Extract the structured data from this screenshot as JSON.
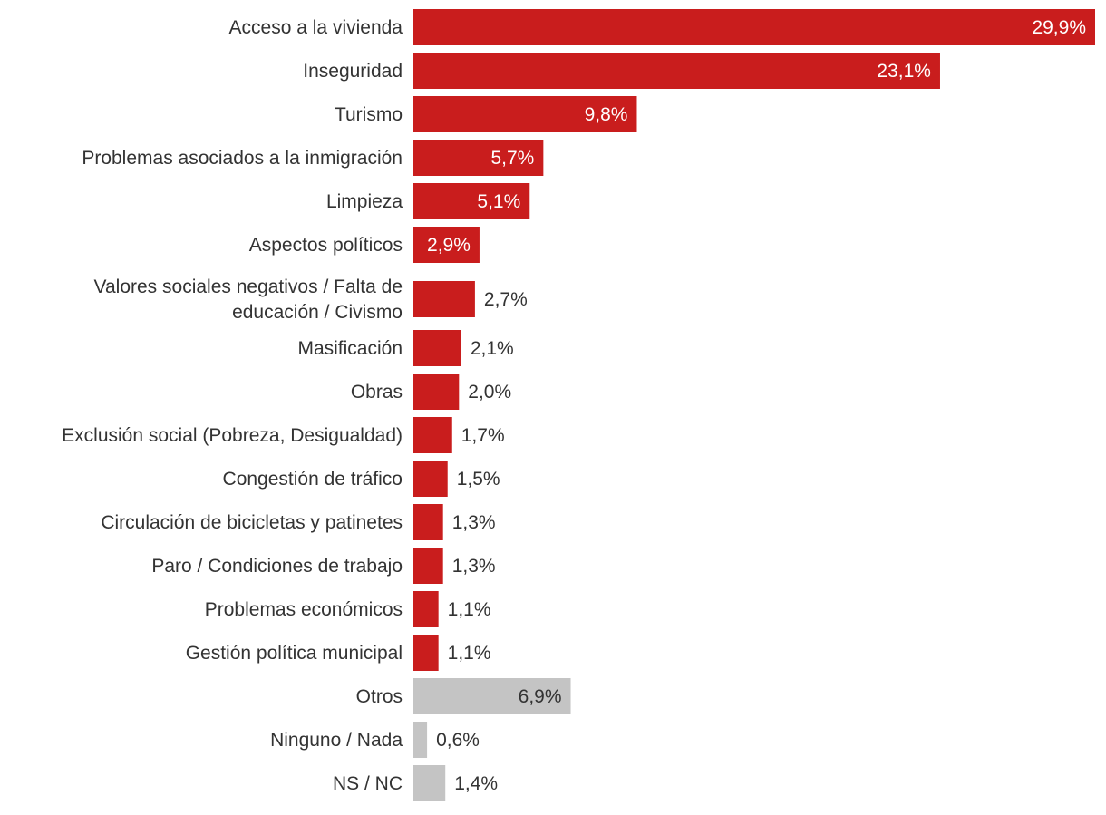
{
  "chart_data": {
    "type": "bar",
    "orientation": "horizontal",
    "title": "",
    "xlabel": "",
    "ylabel": "",
    "xlim": [
      0,
      29.9
    ],
    "grid": false,
    "legend": "none",
    "colors": {
      "main": "#c91d1d",
      "other": "#c4c4c4",
      "label_inside": "#ffffff",
      "label_outside": "#333333",
      "category_text": "#333333"
    },
    "bars": [
      {
        "category": "Acceso a la vivienda",
        "value": 29.9,
        "label": "29,9%",
        "group": "main"
      },
      {
        "category": "Inseguridad",
        "value": 23.1,
        "label": "23,1%",
        "group": "main"
      },
      {
        "category": "Turismo",
        "value": 9.8,
        "label": "9,8%",
        "group": "main"
      },
      {
        "category": "Problemas asociados a la inmigración",
        "value": 5.7,
        "label": "5,7%",
        "group": "main"
      },
      {
        "category": "Limpieza",
        "value": 5.1,
        "label": "5,1%",
        "group": "main"
      },
      {
        "category": "Aspectos políticos",
        "value": 2.9,
        "label": "2,9%",
        "group": "main"
      },
      {
        "category": "Valores sociales negativos / Falta de educación / Civismo",
        "category_lines": [
          "Valores sociales negativos / Falta de",
          "educación / Civismo"
        ],
        "value": 2.7,
        "label": "2,7%",
        "group": "main"
      },
      {
        "category": "Masificación",
        "value": 2.1,
        "label": "2,1%",
        "group": "main"
      },
      {
        "category": "Obras",
        "value": 2.0,
        "label": "2,0%",
        "group": "main"
      },
      {
        "category": "Exclusión social (Pobreza, Desigualdad)",
        "value": 1.7,
        "label": "1,7%",
        "group": "main"
      },
      {
        "category": "Congestión de tráfico",
        "value": 1.5,
        "label": "1,5%",
        "group": "main"
      },
      {
        "category": "Circulación de bicicletas y patinetes",
        "value": 1.3,
        "label": "1,3%",
        "group": "main"
      },
      {
        "category": "Paro / Condiciones de trabajo",
        "value": 1.3,
        "label": "1,3%",
        "group": "main"
      },
      {
        "category": "Problemas económicos",
        "value": 1.1,
        "label": "1,1%",
        "group": "main"
      },
      {
        "category": "Gestión política municipal",
        "value": 1.1,
        "label": "1,1%",
        "group": "main"
      },
      {
        "category": "Otros",
        "value": 6.9,
        "label": "6,9%",
        "group": "other"
      },
      {
        "category": "Ninguno / Nada",
        "value": 0.6,
        "label": "0,6%",
        "group": "other"
      },
      {
        "category": "NS / NC",
        "value": 1.4,
        "label": "1,4%",
        "group": "other"
      }
    ]
  }
}
